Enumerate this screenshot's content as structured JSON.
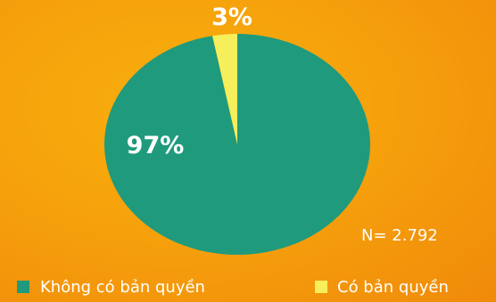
{
  "chart_data": {
    "type": "pie",
    "categories": [
      "Không có bản quyền",
      "Có bản quyền"
    ],
    "values": [
      97,
      3
    ],
    "value_labels": [
      "97%",
      "3%"
    ],
    "colors": [
      "#1f9a7c",
      "#f6ee5b"
    ],
    "note": "N= 2.792",
    "legend_position": "bottom"
  },
  "colors": {
    "background": "#f6a10c",
    "text": "#ffffff"
  }
}
